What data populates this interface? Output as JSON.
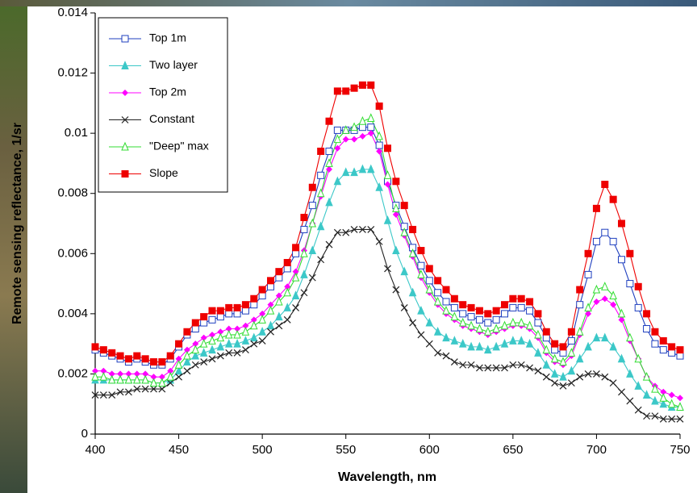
{
  "chart_data": {
    "type": "line",
    "x_label": "Wavelength, nm",
    "y_label": "Remote sensing reflectance, 1/sr",
    "xlim": [
      400,
      750
    ],
    "xticks": [
      400,
      450,
      500,
      550,
      600,
      650,
      700,
      750
    ],
    "ylim": [
      0,
      0.014
    ],
    "yticks": [
      0,
      0.002,
      0.004,
      0.006,
      0.008,
      0.01,
      0.012,
      0.014
    ],
    "grid": false,
    "legend": "upper left",
    "x": [
      400,
      405,
      410,
      415,
      420,
      425,
      430,
      435,
      440,
      445,
      450,
      455,
      460,
      465,
      470,
      475,
      480,
      485,
      490,
      495,
      500,
      505,
      510,
      515,
      520,
      525,
      530,
      535,
      540,
      545,
      550,
      555,
      560,
      565,
      570,
      575,
      580,
      585,
      590,
      595,
      600,
      605,
      610,
      615,
      620,
      625,
      630,
      635,
      640,
      645,
      650,
      655,
      660,
      665,
      670,
      675,
      680,
      685,
      690,
      695,
      700,
      705,
      710,
      715,
      720,
      725,
      730,
      735,
      740,
      745,
      750
    ],
    "series": [
      {
        "name": "Top 1m",
        "color": "#1f3fbf",
        "marker": "square-open",
        "values": [
          0.0028,
          0.0027,
          0.0026,
          0.0025,
          0.0024,
          0.0025,
          0.0024,
          0.0023,
          0.0023,
          0.0025,
          0.0029,
          0.0033,
          0.0035,
          0.0037,
          0.0038,
          0.0039,
          0.004,
          0.004,
          0.0041,
          0.0043,
          0.0046,
          0.0049,
          0.0052,
          0.0055,
          0.006,
          0.0068,
          0.0076,
          0.0086,
          0.0094,
          0.0101,
          0.0101,
          0.0101,
          0.0102,
          0.0102,
          0.0096,
          0.0084,
          0.0076,
          0.0069,
          0.0062,
          0.0056,
          0.0051,
          0.0047,
          0.0044,
          0.0042,
          0.004,
          0.0039,
          0.0038,
          0.0037,
          0.0038,
          0.004,
          0.0042,
          0.0042,
          0.0041,
          0.0037,
          0.0032,
          0.0028,
          0.0027,
          0.0031,
          0.0043,
          0.0053,
          0.0064,
          0.0067,
          0.0064,
          0.0058,
          0.005,
          0.0042,
          0.0035,
          0.003,
          0.0028,
          0.0027,
          0.0026
        ]
      },
      {
        "name": "Two layer",
        "color": "#3cc8c8",
        "marker": "triangle",
        "values": [
          0.0018,
          0.0018,
          0.0018,
          0.0018,
          0.0018,
          0.0018,
          0.0018,
          0.0017,
          0.0017,
          0.0018,
          0.0021,
          0.0024,
          0.0026,
          0.0027,
          0.0028,
          0.0029,
          0.003,
          0.003,
          0.0031,
          0.0032,
          0.0034,
          0.0036,
          0.0039,
          0.0042,
          0.0046,
          0.0053,
          0.0061,
          0.0069,
          0.0077,
          0.0084,
          0.0087,
          0.0087,
          0.0088,
          0.0088,
          0.0082,
          0.0071,
          0.0061,
          0.0054,
          0.0047,
          0.0041,
          0.0037,
          0.0034,
          0.0032,
          0.0031,
          0.003,
          0.0029,
          0.0029,
          0.0028,
          0.0029,
          0.003,
          0.0031,
          0.0031,
          0.003,
          0.0027,
          0.0023,
          0.002,
          0.0019,
          0.0021,
          0.0025,
          0.0029,
          0.0032,
          0.0032,
          0.0029,
          0.0025,
          0.002,
          0.0016,
          0.0013,
          0.0011,
          0.001,
          0.0009,
          0.0009
        ]
      },
      {
        "name": "Top 2m",
        "color": "#ff00ff",
        "marker": "diamond",
        "values": [
          0.0021,
          0.0021,
          0.002,
          0.002,
          0.002,
          0.002,
          0.002,
          0.0019,
          0.0019,
          0.0021,
          0.0025,
          0.0028,
          0.003,
          0.0032,
          0.0033,
          0.0034,
          0.0035,
          0.0035,
          0.0036,
          0.0038,
          0.004,
          0.0043,
          0.0046,
          0.0049,
          0.0054,
          0.0061,
          0.007,
          0.0079,
          0.0088,
          0.0095,
          0.0098,
          0.0098,
          0.0099,
          0.01,
          0.0094,
          0.0083,
          0.0073,
          0.0066,
          0.0059,
          0.0052,
          0.0047,
          0.0043,
          0.004,
          0.0038,
          0.0036,
          0.0035,
          0.0034,
          0.0033,
          0.0034,
          0.0035,
          0.0036,
          0.0036,
          0.0035,
          0.0032,
          0.0027,
          0.0024,
          0.0023,
          0.0026,
          0.0033,
          0.004,
          0.0044,
          0.0045,
          0.0043,
          0.0038,
          0.0031,
          0.0025,
          0.0019,
          0.0016,
          0.0014,
          0.0013,
          0.0012
        ]
      },
      {
        "name": "Constant",
        "color": "#222222",
        "marker": "x",
        "values": [
          0.0013,
          0.0013,
          0.0013,
          0.0014,
          0.0014,
          0.0015,
          0.0015,
          0.0015,
          0.0015,
          0.0017,
          0.0019,
          0.0021,
          0.0023,
          0.0024,
          0.0025,
          0.0026,
          0.0027,
          0.0027,
          0.0028,
          0.003,
          0.0031,
          0.0034,
          0.0036,
          0.0038,
          0.0042,
          0.0047,
          0.0052,
          0.0058,
          0.0063,
          0.0067,
          0.0067,
          0.0068,
          0.0068,
          0.0068,
          0.0064,
          0.0055,
          0.0048,
          0.0042,
          0.0037,
          0.0033,
          0.003,
          0.0027,
          0.0026,
          0.0024,
          0.0023,
          0.0023,
          0.0022,
          0.0022,
          0.0022,
          0.0022,
          0.0023,
          0.0023,
          0.0022,
          0.0021,
          0.0019,
          0.0017,
          0.0016,
          0.0017,
          0.0019,
          0.002,
          0.002,
          0.0019,
          0.0017,
          0.0014,
          0.0011,
          0.0008,
          0.0006,
          0.0006,
          0.0005,
          0.0005,
          0.0005
        ]
      },
      {
        "name": "\"Deep\" max",
        "color": "#33dd33",
        "marker": "triangle-open",
        "values": [
          0.0019,
          0.0019,
          0.0018,
          0.0018,
          0.0018,
          0.0018,
          0.0018,
          0.0017,
          0.0017,
          0.0019,
          0.0023,
          0.0026,
          0.0028,
          0.003,
          0.0031,
          0.0032,
          0.0033,
          0.0033,
          0.0034,
          0.0036,
          0.0038,
          0.0041,
          0.0044,
          0.0047,
          0.0052,
          0.006,
          0.007,
          0.008,
          0.009,
          0.0098,
          0.0101,
          0.0102,
          0.0104,
          0.0105,
          0.0099,
          0.0086,
          0.0075,
          0.0067,
          0.006,
          0.0053,
          0.0048,
          0.0044,
          0.0041,
          0.0039,
          0.0037,
          0.0036,
          0.0035,
          0.0034,
          0.0035,
          0.0036,
          0.0037,
          0.0037,
          0.0036,
          0.0033,
          0.0028,
          0.0025,
          0.0024,
          0.0027,
          0.0034,
          0.0042,
          0.0048,
          0.0049,
          0.0046,
          0.004,
          0.0032,
          0.0025,
          0.0019,
          0.0015,
          0.0012,
          0.001,
          0.0009
        ]
      },
      {
        "name": "Slope",
        "color": "#ee0000",
        "marker": "square",
        "values": [
          0.0029,
          0.0028,
          0.0027,
          0.0026,
          0.0025,
          0.0026,
          0.0025,
          0.0024,
          0.0024,
          0.0026,
          0.003,
          0.0034,
          0.0037,
          0.0039,
          0.0041,
          0.0041,
          0.0042,
          0.0042,
          0.0043,
          0.0045,
          0.0048,
          0.0051,
          0.0054,
          0.0057,
          0.0062,
          0.0072,
          0.0082,
          0.0094,
          0.0104,
          0.0114,
          0.0114,
          0.0115,
          0.0116,
          0.0116,
          0.0109,
          0.0095,
          0.0084,
          0.0076,
          0.0068,
          0.0061,
          0.0055,
          0.0051,
          0.0048,
          0.0045,
          0.0043,
          0.0042,
          0.0041,
          0.004,
          0.0041,
          0.0043,
          0.0045,
          0.0045,
          0.0044,
          0.004,
          0.0034,
          0.003,
          0.0029,
          0.0034,
          0.0048,
          0.006,
          0.0075,
          0.0083,
          0.0078,
          0.007,
          0.006,
          0.0049,
          0.004,
          0.0034,
          0.0031,
          0.0029,
          0.0028
        ]
      }
    ]
  }
}
